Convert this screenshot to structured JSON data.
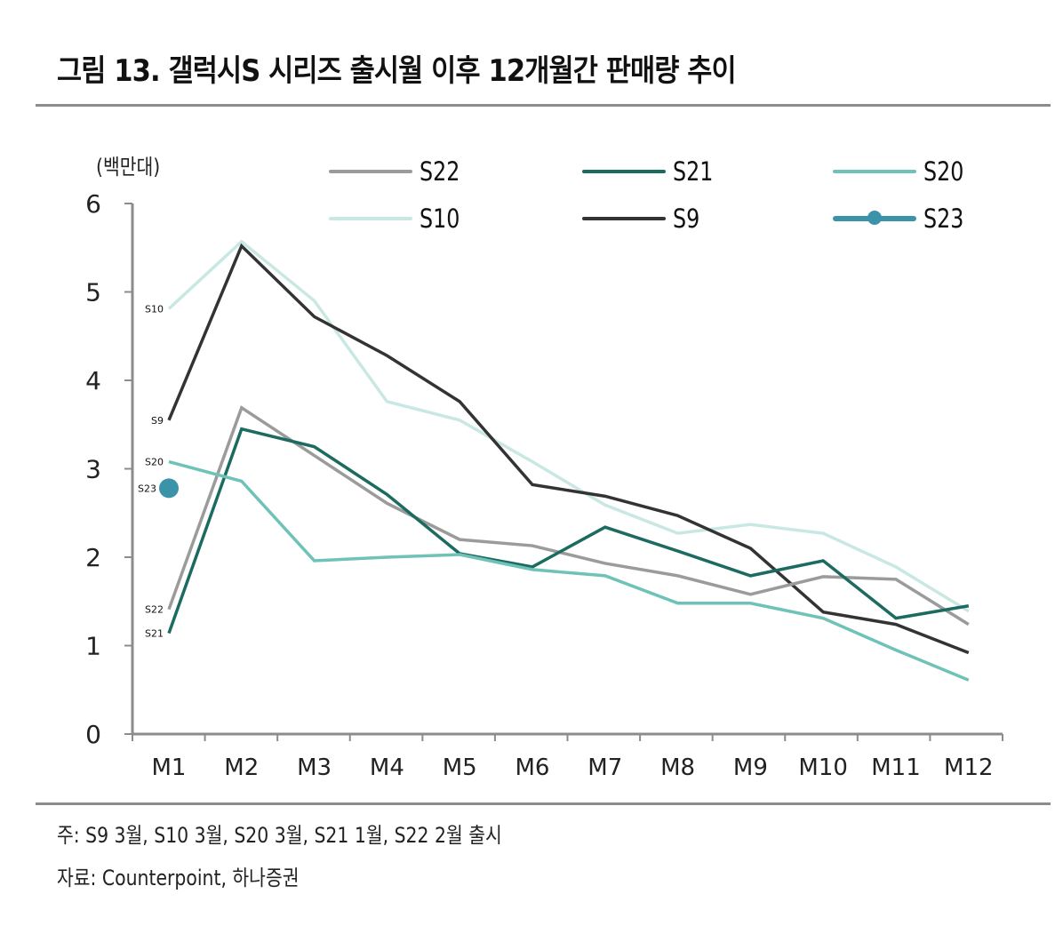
{
  "title": "그림 13. 갤럭시S 시리즈 출시월 이후 12개월간 판매량 추이",
  "unit_label": "(백만대)",
  "footnotes": {
    "note": "주: S9 3월, S10 3월, S20 3월, S21 1월, S22 2월 출시",
    "source": "자료: Counterpoint, 하나증권"
  },
  "legend": [
    {
      "name": "S22",
      "color": "#9b9b9b",
      "marker": false
    },
    {
      "name": "S21",
      "color": "#1b6b60",
      "marker": false
    },
    {
      "name": "S20",
      "color": "#6fc2b8",
      "marker": false
    },
    {
      "name": "S10",
      "color": "#c9e8e3",
      "marker": false
    },
    {
      "name": "S9",
      "color": "#333333",
      "marker": false
    },
    {
      "name": "S23",
      "color": "#3b93aa",
      "marker": true
    }
  ],
  "chart_data": {
    "type": "line",
    "title": "갤럭시S 시리즈 출시월 이후 12개월간 판매량 추이",
    "xlabel": "",
    "ylabel": "(백만대)",
    "categories": [
      "M1",
      "M2",
      "M3",
      "M4",
      "M5",
      "M6",
      "M7",
      "M8",
      "M9",
      "M10",
      "M11",
      "M12"
    ],
    "ylim": [
      0,
      6
    ],
    "yticks": [
      0,
      1,
      2,
      3,
      4,
      5,
      6
    ],
    "grid": false,
    "legend_position": "top",
    "series": [
      {
        "name": "S22",
        "color": "#9b9b9b",
        "values": [
          1.41,
          3.69,
          3.15,
          2.61,
          2.2,
          2.13,
          1.93,
          1.79,
          1.58,
          1.78,
          1.75,
          1.24
        ]
      },
      {
        "name": "S21",
        "color": "#1b6b60",
        "values": [
          1.14,
          3.45,
          3.25,
          2.71,
          2.04,
          1.89,
          2.34,
          2.07,
          1.79,
          1.96,
          1.31,
          1.45
        ]
      },
      {
        "name": "S20",
        "color": "#6fc2b8",
        "values": [
          3.08,
          2.86,
          1.96,
          2.0,
          2.03,
          1.86,
          1.79,
          1.48,
          1.48,
          1.31,
          0.95,
          0.61
        ]
      },
      {
        "name": "S10",
        "color": "#c9e8e3",
        "values": [
          4.81,
          5.57,
          4.9,
          3.76,
          3.55,
          3.08,
          2.59,
          2.27,
          2.37,
          2.27,
          1.89,
          1.39
        ]
      },
      {
        "name": "S9",
        "color": "#333333",
        "values": [
          3.55,
          5.52,
          4.72,
          4.28,
          3.76,
          2.82,
          2.69,
          2.47,
          2.1,
          1.38,
          1.24,
          0.92
        ]
      },
      {
        "name": "S23",
        "color": "#3b93aa",
        "values": [
          2.78
        ],
        "marker": true
      }
    ],
    "start_labels": [
      "S10",
      "S9",
      "S20",
      "S23",
      "S22",
      "S21"
    ]
  }
}
